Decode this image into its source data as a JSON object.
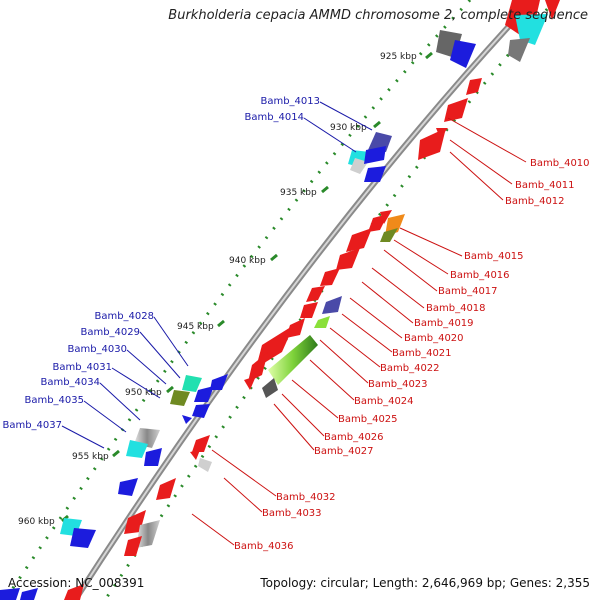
{
  "title": "Burkholderia cepacia AMMD chromosome 2, complete sequence",
  "accession": "Accession: NC_008391",
  "topology": "Topology: circular; Length: 2,646,969 bp; Genes: 2,355",
  "colors": {
    "left_labels": "#1a1aa8",
    "right_labels": "#cc1111",
    "tick": "#2a8a2a"
  },
  "kbp_labels": [
    "925 kbp",
    "930 kbp",
    "935 kbp",
    "940 kbp",
    "945 kbp",
    "950 kbp",
    "955 kbp",
    "960 kbp"
  ],
  "left_genes": [
    "Bamb_4013",
    "Bamb_4014",
    "Bamb_4028",
    "Bamb_4029",
    "Bamb_4030",
    "Bamb_4031",
    "Bamb_4034",
    "Bamb_4035",
    "Bamb_4037"
  ],
  "right_genes": [
    "Bamb_4010",
    "Bamb_4011",
    "Bamb_4012",
    "Bamb_4015",
    "Bamb_4016",
    "Bamb_4017",
    "Bamb_4018",
    "Bamb_4019",
    "Bamb_4020",
    "Bamb_4021",
    "Bamb_4022",
    "Bamb_4023",
    "Bamb_4024",
    "Bamb_4025",
    "Bamb_4026",
    "Bamb_4027",
    "Bamb_4032",
    "Bamb_4033",
    "Bamb_4036"
  ]
}
